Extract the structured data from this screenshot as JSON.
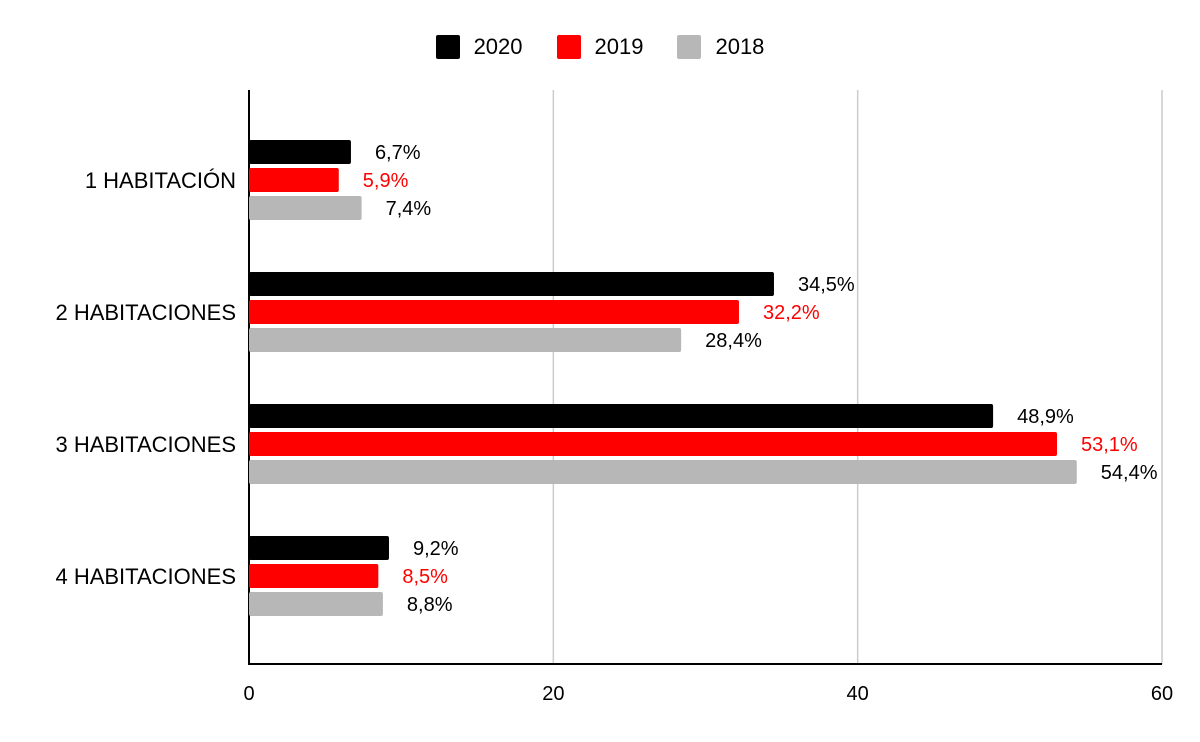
{
  "chart_data": {
    "type": "bar",
    "orientation": "horizontal",
    "categories": [
      "1 HABITACIÓN",
      "2 HABITACIONES",
      "3 HABITACIONES",
      "4 HABITACIONES"
    ],
    "series": [
      {
        "name": "2020",
        "color": "#000000",
        "label_color": "#000000",
        "values": [
          6.7,
          34.5,
          48.9,
          9.2
        ],
        "labels": [
          "6,7%",
          "34,5%",
          "48,9%",
          "9,2%"
        ]
      },
      {
        "name": "2019",
        "color": "#ff0000",
        "label_color": "#ff0000",
        "values": [
          5.9,
          32.2,
          53.1,
          8.5
        ],
        "labels": [
          "5,9%",
          "32,2%",
          "53,1%",
          "8,5%"
        ]
      },
      {
        "name": "2018",
        "color": "#b7b7b7",
        "label_color": "#000000",
        "values": [
          7.4,
          28.4,
          54.4,
          8.8
        ],
        "labels": [
          "7,4%",
          "28,4%",
          "54,4%",
          "8,8%"
        ]
      }
    ],
    "xlim": [
      0,
      60
    ],
    "xticks": [
      "0",
      "20",
      "40",
      "60"
    ],
    "grid": true,
    "legend_position": "top"
  }
}
